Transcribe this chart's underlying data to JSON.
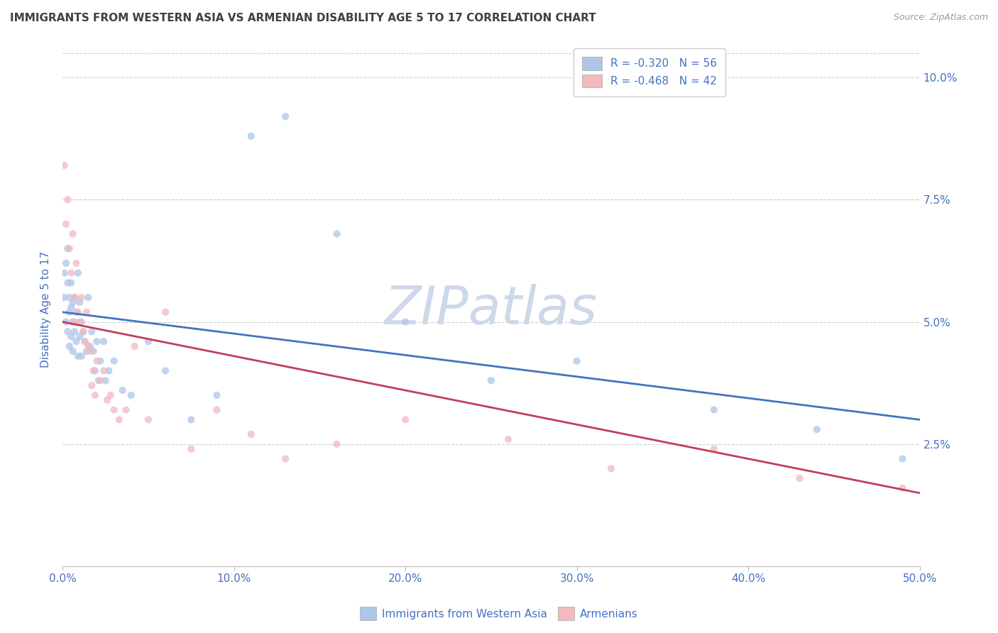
{
  "title": "IMMIGRANTS FROM WESTERN ASIA VS ARMENIAN DISABILITY AGE 5 TO 17 CORRELATION CHART",
  "source": "Source: ZipAtlas.com",
  "xlim": [
    0.0,
    0.5
  ],
  "ylim": [
    0.0,
    0.105
  ],
  "ylabel": "Disability Age 5 to 17",
  "legend_labels": [
    "R = -0.320   N = 56",
    "R = -0.468   N = 42"
  ],
  "bottom_legend": [
    "Immigrants from Western Asia",
    "Armenians"
  ],
  "watermark": "ZIPatlas",
  "blue_scatter_x": [
    0.001,
    0.001,
    0.002,
    0.002,
    0.003,
    0.003,
    0.003,
    0.004,
    0.004,
    0.004,
    0.005,
    0.005,
    0.005,
    0.006,
    0.006,
    0.006,
    0.007,
    0.007,
    0.008,
    0.008,
    0.009,
    0.009,
    0.01,
    0.01,
    0.011,
    0.011,
    0.012,
    0.013,
    0.014,
    0.015,
    0.016,
    0.017,
    0.018,
    0.019,
    0.02,
    0.021,
    0.022,
    0.024,
    0.025,
    0.027,
    0.03,
    0.035,
    0.04,
    0.05,
    0.06,
    0.075,
    0.09,
    0.11,
    0.13,
    0.16,
    0.2,
    0.25,
    0.3,
    0.38,
    0.44,
    0.49
  ],
  "blue_scatter_y": [
    0.06,
    0.055,
    0.062,
    0.05,
    0.065,
    0.058,
    0.048,
    0.055,
    0.052,
    0.045,
    0.058,
    0.053,
    0.047,
    0.054,
    0.05,
    0.044,
    0.055,
    0.048,
    0.052,
    0.046,
    0.06,
    0.043,
    0.054,
    0.047,
    0.05,
    0.043,
    0.048,
    0.046,
    0.044,
    0.055,
    0.045,
    0.048,
    0.044,
    0.04,
    0.046,
    0.038,
    0.042,
    0.046,
    0.038,
    0.04,
    0.042,
    0.036,
    0.035,
    0.046,
    0.04,
    0.03,
    0.035,
    0.088,
    0.092,
    0.068,
    0.05,
    0.038,
    0.042,
    0.032,
    0.028,
    0.022
  ],
  "pink_scatter_x": [
    0.001,
    0.002,
    0.003,
    0.004,
    0.005,
    0.006,
    0.007,
    0.007,
    0.008,
    0.009,
    0.01,
    0.011,
    0.012,
    0.013,
    0.014,
    0.015,
    0.016,
    0.017,
    0.018,
    0.019,
    0.02,
    0.022,
    0.024,
    0.026,
    0.028,
    0.03,
    0.033,
    0.037,
    0.042,
    0.05,
    0.06,
    0.075,
    0.09,
    0.11,
    0.13,
    0.16,
    0.2,
    0.26,
    0.32,
    0.38,
    0.43,
    0.49
  ],
  "pink_scatter_y": [
    0.082,
    0.07,
    0.075,
    0.065,
    0.06,
    0.068,
    0.055,
    0.05,
    0.062,
    0.052,
    0.05,
    0.055,
    0.048,
    0.046,
    0.052,
    0.045,
    0.044,
    0.037,
    0.04,
    0.035,
    0.042,
    0.038,
    0.04,
    0.034,
    0.035,
    0.032,
    0.03,
    0.032,
    0.045,
    0.03,
    0.052,
    0.024,
    0.032,
    0.027,
    0.022,
    0.025,
    0.03,
    0.026,
    0.02,
    0.024,
    0.018,
    0.016
  ],
  "blue_line_x": [
    0.0,
    0.5
  ],
  "blue_line_y": [
    0.052,
    0.03
  ],
  "pink_line_x": [
    0.0,
    0.5
  ],
  "pink_line_y": [
    0.05,
    0.015
  ],
  "scatter_size": 55,
  "scatter_alpha": 0.75,
  "grid_color": "#cccccc",
  "line_blue": "#4472c4",
  "line_pink": "#c0405a",
  "scatter_blue": "#aec6e8",
  "scatter_pink": "#f4b8c1",
  "title_color": "#404040",
  "axis_label_color": "#4472c4",
  "source_color": "#999999",
  "watermark_color": "#cdd8ea",
  "background_color": "#ffffff",
  "ytick_vals": [
    0.025,
    0.05,
    0.075,
    0.1
  ],
  "ytick_labels": [
    "2.5%",
    "5.0%",
    "7.5%",
    "10.0%"
  ],
  "xtick_vals": [
    0.0,
    0.1,
    0.2,
    0.3,
    0.4,
    0.5
  ],
  "xtick_labels": [
    "0.0%",
    "10.0%",
    "20.0%",
    "30.0%",
    "40.0%",
    "50.0%"
  ]
}
